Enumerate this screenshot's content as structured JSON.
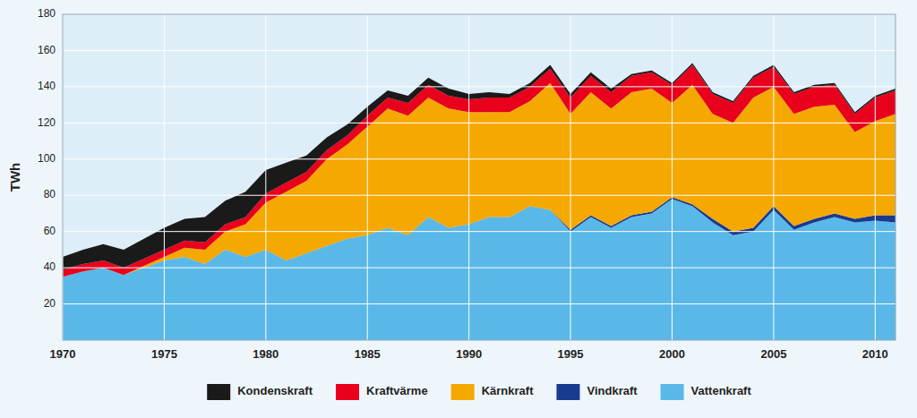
{
  "chart_data": {
    "type": "area",
    "stacked": true,
    "ylabel": "TWh",
    "x": [
      1970,
      1971,
      1972,
      1973,
      1974,
      1975,
      1976,
      1977,
      1978,
      1979,
      1980,
      1981,
      1982,
      1983,
      1984,
      1985,
      1986,
      1987,
      1988,
      1989,
      1990,
      1991,
      1992,
      1993,
      1994,
      1995,
      1996,
      1997,
      1998,
      1999,
      2000,
      2001,
      2002,
      2003,
      2004,
      2005,
      2006,
      2007,
      2008,
      2009,
      2010,
      2011
    ],
    "series": [
      {
        "name": "Vattenkraft",
        "color": "#5ab8e8",
        "values": [
          35,
          38,
          40,
          36,
          40,
          44,
          46,
          42,
          50,
          46,
          50,
          44,
          48,
          52,
          56,
          58,
          62,
          58,
          68,
          62,
          64,
          68,
          68,
          74,
          72,
          60,
          68,
          62,
          68,
          70,
          78,
          74,
          65,
          58,
          60,
          72,
          61,
          65,
          68,
          65,
          66,
          65
        ]
      },
      {
        "name": "Vindkraft",
        "color": "#1a3a8f",
        "values": [
          0,
          0,
          0,
          0,
          0,
          0,
          0,
          0,
          0,
          0,
          0,
          0,
          0,
          0,
          0,
          0,
          0,
          0,
          0,
          0,
          0,
          0,
          0,
          0,
          0,
          1,
          1,
          1,
          1,
          1,
          1,
          1,
          2,
          2,
          2,
          2,
          2,
          2,
          2,
          2,
          3,
          4
        ]
      },
      {
        "name": "Kärnkraft",
        "color": "#f5a800",
        "values": [
          0,
          0,
          0,
          0,
          1,
          2,
          5,
          8,
          10,
          18,
          26,
          38,
          40,
          48,
          52,
          60,
          66,
          66,
          66,
          66,
          62,
          58,
          58,
          58,
          70,
          64,
          68,
          65,
          68,
          68,
          52,
          66,
          58,
          60,
          72,
          66,
          62,
          62,
          60,
          48,
          52,
          56
        ]
      },
      {
        "name": "Kraftvärme",
        "color": "#e8001c",
        "values": [
          4,
          4,
          4,
          4,
          4,
          4,
          4,
          4,
          4,
          4,
          5,
          5,
          5,
          5,
          5,
          6,
          6,
          7,
          7,
          7,
          7,
          8,
          8,
          8,
          8,
          9,
          9,
          9,
          9,
          9,
          10,
          11,
          11,
          11,
          11,
          11,
          11,
          11,
          11,
          10,
          13,
          13
        ]
      },
      {
        "name": "Kondenskraft",
        "color": "#1a1a1a",
        "values": [
          7,
          8,
          9,
          10,
          11,
          12,
          12,
          14,
          13,
          14,
          13,
          11,
          9,
          7,
          6,
          5,
          4,
          4,
          4,
          4,
          3,
          3,
          2,
          2,
          2,
          2,
          2,
          2,
          1,
          1,
          1,
          1,
          1,
          1,
          1,
          1,
          1,
          1,
          1,
          1,
          1,
          1
        ]
      }
    ],
    "xlim": [
      1970,
      2011
    ],
    "xticks": [
      1970,
      1975,
      1980,
      1985,
      1990,
      1995,
      2000,
      2005,
      2010
    ],
    "ylim": [
      0,
      180
    ],
    "yticks": [
      20,
      40,
      60,
      80,
      100,
      120,
      140,
      160,
      180
    ],
    "grid": true,
    "legend": "bottom"
  }
}
